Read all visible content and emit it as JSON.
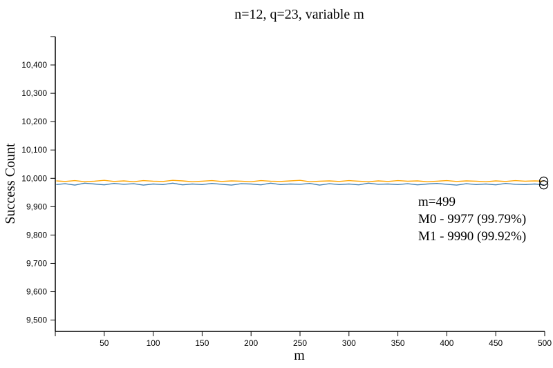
{
  "chart_data": {
    "type": "line",
    "title": "n=12, q=23, variable m",
    "xlabel": "m",
    "ylabel": "Success Count",
    "xlim": [
      0,
      500
    ],
    "ylim": [
      9460,
      10500
    ],
    "x_ticks": [
      50,
      100,
      150,
      200,
      250,
      300,
      350,
      400,
      450,
      500
    ],
    "x_tick_labels": [
      "50",
      "100",
      "150",
      "200",
      "250",
      "300",
      "350",
      "400",
      "450",
      "500"
    ],
    "y_ticks": [
      9500,
      9600,
      9700,
      9800,
      9900,
      10000,
      10100,
      10200,
      10300,
      10400
    ],
    "y_tick_labels": [
      "9,500",
      "9,600",
      "9,700",
      "9,800",
      "9,900",
      "10,000",
      "10,100",
      "10,200",
      "10,300",
      "10,400"
    ],
    "grid": false,
    "series": [
      {
        "key": "M0",
        "color": "#4682b4",
        "x": [
          1,
          10,
          20,
          30,
          40,
          50,
          60,
          70,
          80,
          90,
          100,
          110,
          120,
          130,
          140,
          150,
          160,
          170,
          180,
          190,
          200,
          210,
          220,
          230,
          240,
          250,
          260,
          270,
          280,
          290,
          300,
          310,
          320,
          330,
          340,
          350,
          360,
          370,
          380,
          390,
          400,
          410,
          420,
          430,
          440,
          450,
          460,
          470,
          480,
          490,
          499
        ],
        "values": [
          9978,
          9981,
          9976,
          9983,
          9980,
          9977,
          9982,
          9979,
          9981,
          9976,
          9980,
          9978,
          9983,
          9977,
          9980,
          9978,
          9982,
          9979,
          9976,
          9981,
          9980,
          9977,
          9983,
          9978,
          9980,
          9979,
          9982,
          9976,
          9981,
          9978,
          9980,
          9977,
          9983,
          9979,
          9980,
          9978,
          9981,
          9977,
          9980,
          9982,
          9979,
          9976,
          9981,
          9978,
          9980,
          9977,
          9982,
          9979,
          9978,
          9980,
          9977
        ]
      },
      {
        "key": "M1",
        "color": "#ffa500",
        "x": [
          1,
          10,
          20,
          30,
          40,
          50,
          60,
          70,
          80,
          90,
          100,
          110,
          120,
          130,
          140,
          150,
          160,
          170,
          180,
          190,
          200,
          210,
          220,
          230,
          240,
          250,
          260,
          270,
          280,
          290,
          300,
          310,
          320,
          330,
          340,
          350,
          360,
          370,
          380,
          390,
          400,
          410,
          420,
          430,
          440,
          450,
          460,
          470,
          480,
          490,
          499
        ],
        "values": [
          9991,
          9989,
          9992,
          9988,
          9990,
          9993,
          9989,
          9991,
          9988,
          9992,
          9990,
          9989,
          9993,
          9991,
          9988,
          9990,
          9992,
          9989,
          9991,
          9990,
          9988,
          9992,
          9990,
          9989,
          9991,
          9993,
          9988,
          9990,
          9991,
          9989,
          9992,
          9990,
          9988,
          9991,
          9989,
          9992,
          9990,
          9991,
          9988,
          9990,
          9992,
          9989,
          9991,
          9990,
          9988,
          9991,
          9989,
          9992,
          9990,
          9991,
          9990
        ]
      }
    ],
    "annotation": {
      "line1": "m=499",
      "line2": "M0 - 9977 (99.79%)",
      "line3": "M1 - 9990 (99.92%)",
      "x": 499
    }
  }
}
